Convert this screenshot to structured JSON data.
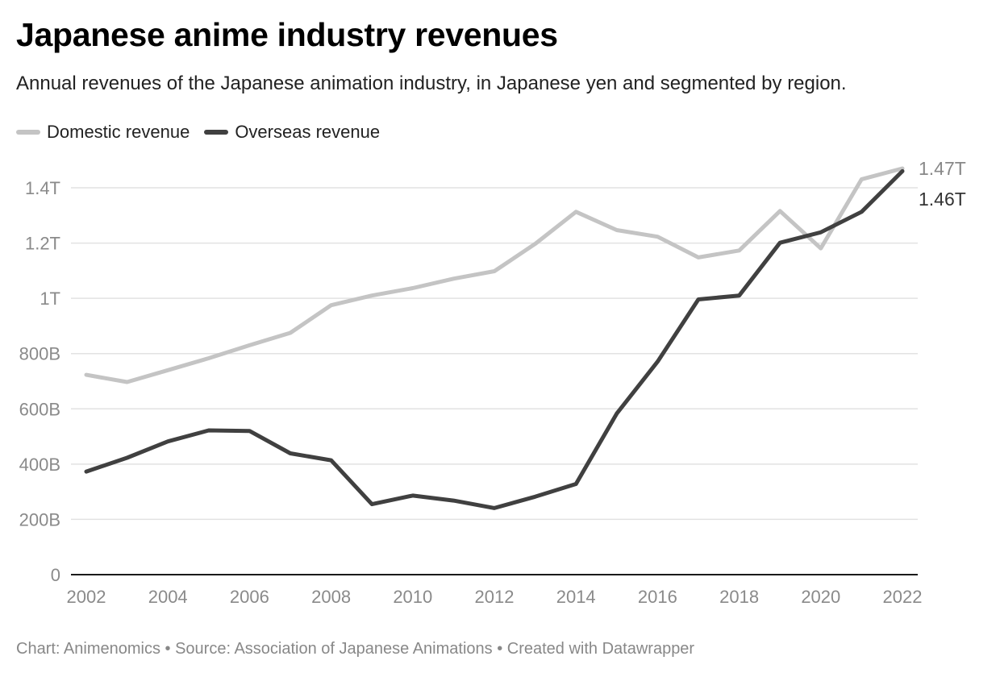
{
  "title": "Japanese anime industry revenues",
  "subtitle": "Annual revenues of the Japanese animation industry, in Japanese yen and segmented by region.",
  "legend": {
    "domestic_label": "Domestic revenue",
    "overseas_label": "Overseas revenue"
  },
  "footer": "Chart: Animenomics • Source: Association of Japanese Animations • Created with Datawrapper",
  "colors": {
    "domestic": "#c4c4c4",
    "overseas": "#404040",
    "grid": "#e2e2e2",
    "axis": "#1a1a1a"
  },
  "chart_data": {
    "type": "line",
    "title": "Japanese anime industry revenues",
    "subtitle": "Annual revenues of the Japanese animation industry, in Japanese yen and segmented by region.",
    "xlabel": "",
    "ylabel": "",
    "x": [
      2002,
      2003,
      2004,
      2005,
      2006,
      2007,
      2008,
      2009,
      2010,
      2011,
      2012,
      2013,
      2014,
      2015,
      2016,
      2017,
      2018,
      2019,
      2020,
      2021,
      2022
    ],
    "x_tick_labels": [
      "2002",
      "2004",
      "2006",
      "2008",
      "2010",
      "2012",
      "2014",
      "2016",
      "2018",
      "2020",
      "2022"
    ],
    "y_ticks": [
      0,
      200,
      400,
      600,
      800,
      1000,
      1200,
      1400
    ],
    "y_tick_labels": [
      "0",
      "200B",
      "400B",
      "600B",
      "800B",
      "1T",
      "1.2T",
      "1.4T"
    ],
    "y_unit": "billion yen",
    "ylim": [
      0,
      1400
    ],
    "grid": true,
    "legend_position": "top-left",
    "series": [
      {
        "name": "Domestic revenue",
        "key": "domestic",
        "values": [
          723,
          697,
          740,
          783,
          830,
          875,
          975,
          1010,
          1037,
          1071,
          1098,
          1197,
          1313,
          1247,
          1223,
          1148,
          1173,
          1316,
          1181,
          1431,
          1470
        ],
        "end_label": "1.47T"
      },
      {
        "name": "Overseas revenue",
        "key": "overseas",
        "values": [
          373,
          423,
          482,
          522,
          520,
          439,
          414,
          255,
          286,
          268,
          241,
          282,
          328,
          583,
          771,
          996,
          1010,
          1201,
          1239,
          1313,
          1460
        ],
        "end_label": "1.46T"
      }
    ]
  }
}
